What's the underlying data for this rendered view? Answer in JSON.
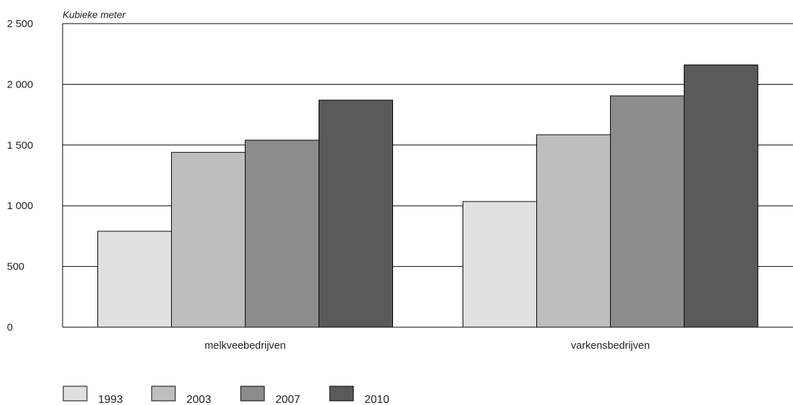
{
  "chart_data": {
    "type": "bar",
    "ylabel": "Kubieke meter",
    "xlabel": "",
    "ylim": [
      0,
      2500
    ],
    "yticks": [
      0,
      500,
      1000,
      1500,
      2000,
      2500
    ],
    "ytick_labels": [
      "0",
      "500",
      "1 000",
      "1 500",
      "2 000",
      "2 500"
    ],
    "grid": true,
    "legend_position": "bottom-left",
    "categories": [
      "melkveebedrijven",
      "varkensbedrijven"
    ],
    "series": [
      {
        "name": "1993",
        "values": [
          790,
          1035
        ],
        "color": "#e0e0e0"
      },
      {
        "name": "2003",
        "values": [
          1440,
          1585
        ],
        "color": "#bebebe"
      },
      {
        "name": "2007",
        "values": [
          1540,
          1905
        ],
        "color": "#8c8c8c"
      },
      {
        "name": "2010",
        "values": [
          1870,
          2160
        ],
        "color": "#5a5a5a"
      }
    ]
  }
}
